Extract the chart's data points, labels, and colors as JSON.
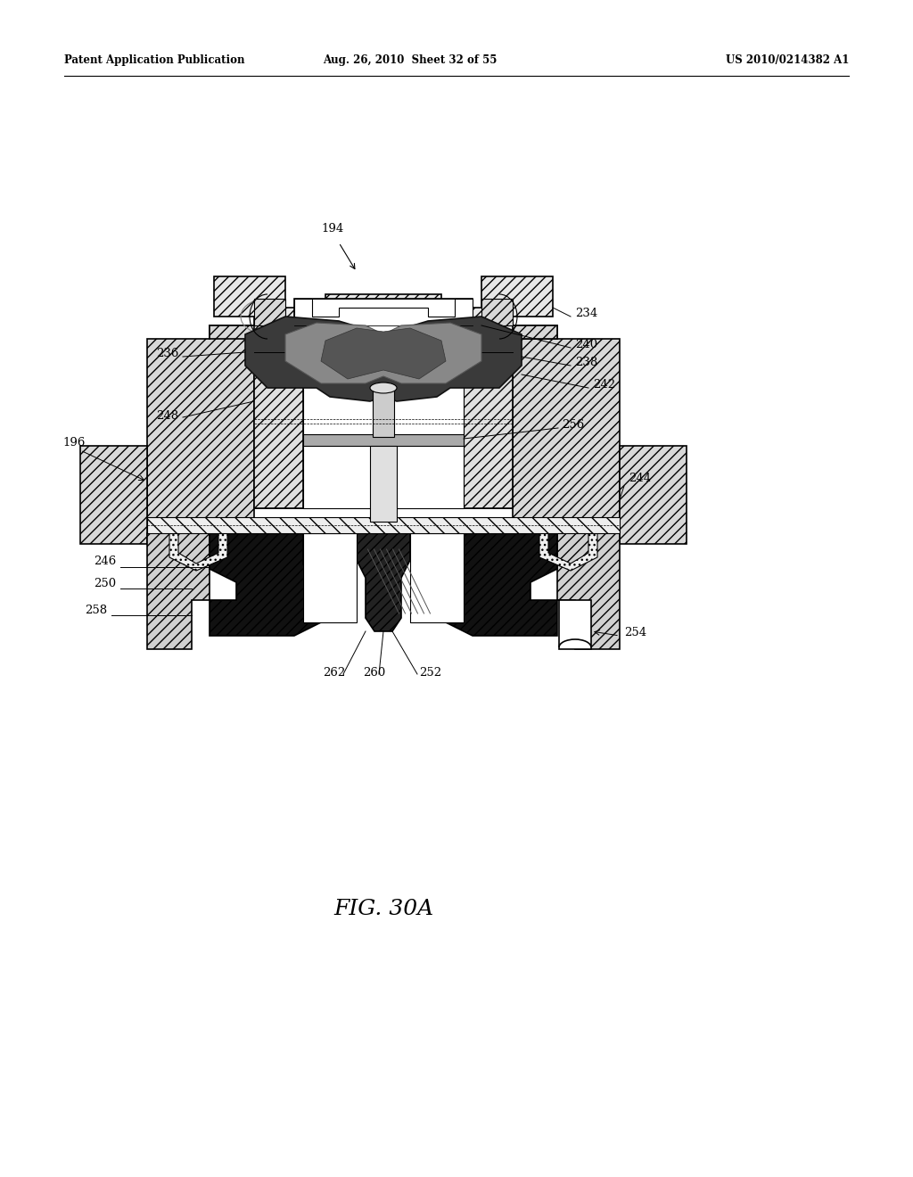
{
  "header_left": "Patent Application Publication",
  "header_center": "Aug. 26, 2010  Sheet 32 of 55",
  "header_right": "US 2010/0214382 A1",
  "figure_label": "FIG. 30A",
  "bg_color": "#ffffff",
  "line_color": "#000000",
  "page_width": 10.24,
  "page_height": 13.2,
  "dpi": 100
}
